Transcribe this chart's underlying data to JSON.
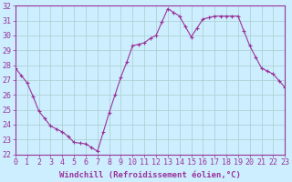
{
  "hours": [
    0,
    0.5,
    1,
    1.5,
    2,
    2.5,
    3,
    3.5,
    4,
    4.5,
    5,
    5.5,
    6,
    6.5,
    7,
    7.5,
    8,
    8.5,
    9,
    9.5,
    10,
    10.5,
    11,
    11.5,
    12,
    12.5,
    13,
    13.5,
    14,
    14.5,
    15,
    15.5,
    16,
    16.5,
    17,
    17.5,
    18,
    18.5,
    19,
    19.5,
    20,
    20.5,
    21,
    21.5,
    22,
    22.5,
    23
  ],
  "windchill": [
    27.8,
    27.3,
    26.8,
    25.9,
    24.9,
    24.4,
    23.9,
    23.7,
    23.5,
    23.2,
    22.8,
    22.75,
    22.7,
    22.45,
    22.2,
    23.5,
    24.8,
    26.0,
    27.2,
    28.2,
    29.3,
    29.4,
    29.5,
    29.8,
    30.0,
    30.9,
    31.8,
    31.55,
    31.3,
    30.6,
    29.9,
    30.5,
    31.1,
    31.2,
    31.3,
    31.3,
    31.3,
    31.3,
    31.3,
    30.3,
    29.3,
    28.55,
    27.8,
    27.6,
    27.4,
    26.95,
    26.5
  ],
  "line_color": "#993399",
  "marker_color": "#993399",
  "bg_color": "#cceeff",
  "grid_color": "#aacccc",
  "axis_color": "#993399",
  "xlabel_text": "Windchill (Refroidissement éolien,°C)",
  "ylim": [
    22,
    32
  ],
  "yticks": [
    22,
    23,
    24,
    25,
    26,
    27,
    28,
    29,
    30,
    31,
    32
  ],
  "xticks": [
    0,
    1,
    2,
    3,
    4,
    5,
    6,
    7,
    8,
    9,
    10,
    11,
    12,
    13,
    14,
    15,
    16,
    17,
    18,
    19,
    20,
    21,
    22,
    23
  ],
  "label_fontsize": 6.5,
  "tick_fontsize": 6.0
}
